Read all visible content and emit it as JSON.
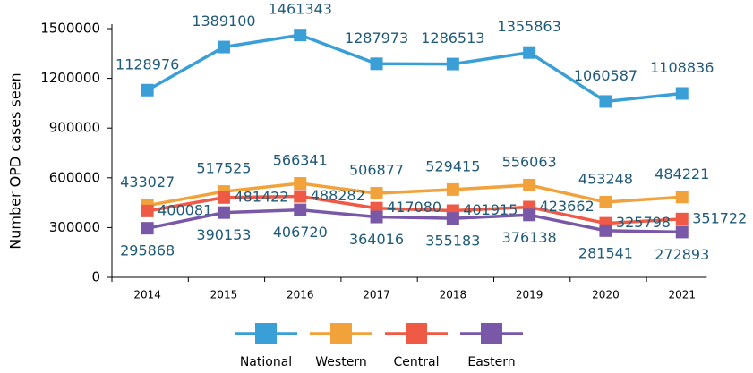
{
  "chart_data": {
    "type": "line",
    "y_label": "Number OPD cases seen",
    "categories": [
      "2014",
      "2015",
      "2016",
      "2017",
      "2018",
      "2019",
      "2020",
      "2021"
    ],
    "series": [
      {
        "name": "National",
        "color": "#3a9fd6",
        "values": [
          1128976,
          1389100,
          1461343,
          1287973,
          1286513,
          1355863,
          1060587,
          1108836
        ]
      },
      {
        "name": "Western",
        "color": "#f2a23a",
        "values": [
          433027,
          517525,
          566341,
          506877,
          529415,
          556063,
          453248,
          484221
        ]
      },
      {
        "name": "Central",
        "color": "#ee5a45",
        "values": [
          400081,
          481422,
          488282,
          417080,
          401915,
          423662,
          325798,
          351722
        ]
      },
      {
        "name": "Eastern",
        "color": "#7a58a8",
        "values": [
          295868,
          390153,
          406720,
          364016,
          355183,
          376138,
          281541,
          272893
        ]
      }
    ],
    "ylim": [
      0,
      1500000
    ],
    "yticks": [
      0,
      300000,
      600000,
      900000,
      1200000,
      1500000
    ],
    "grid": false,
    "legend": "bottom"
  }
}
